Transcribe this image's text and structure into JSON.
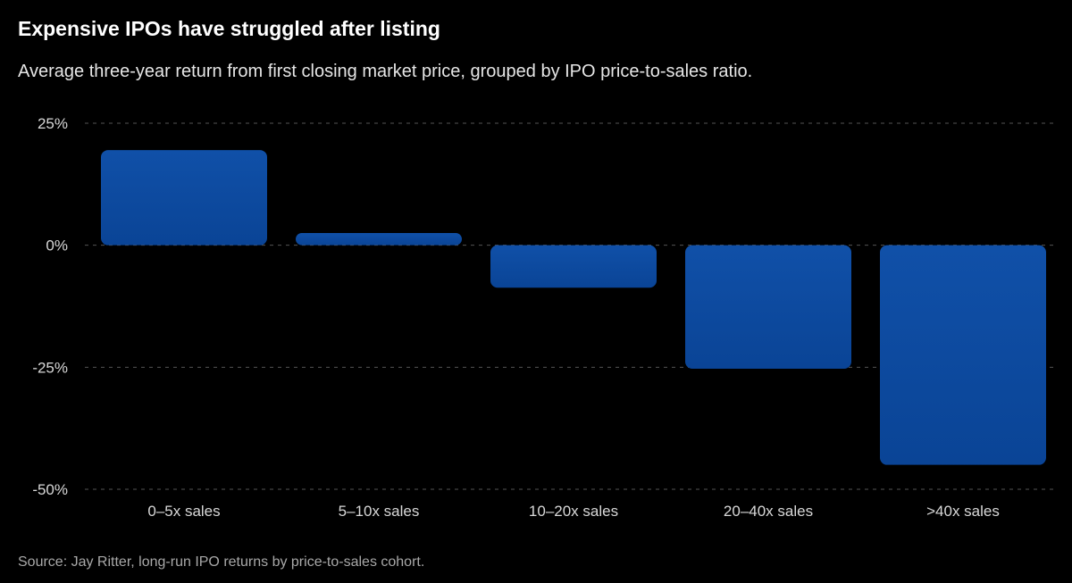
{
  "chart_data": {
    "type": "bar",
    "title": "Expensive IPOs have struggled after listing",
    "subtitle": "Average three-year return from first closing market price, grouped by IPO price-to-sales ratio.",
    "source": "Source: Jay Ritter, long-run IPO returns by price-to-sales cohort.",
    "categories": [
      "0–5x sales",
      "5–10x sales",
      "10–20x sales",
      "20–40x sales",
      ">40x sales"
    ],
    "values": [
      19.5,
      2.5,
      -8.7,
      -25.3,
      -45
    ],
    "value_unit": "%",
    "ylim": [
      -50,
      25
    ],
    "yticks": [
      25,
      0,
      -25,
      -50
    ],
    "ytick_labels": [
      "25%",
      "0%",
      "-25%",
      "-50%"
    ],
    "xlabel": "",
    "ylabel": "",
    "grid": true,
    "bar_color": "#0d4aa1",
    "background": "#000000"
  }
}
